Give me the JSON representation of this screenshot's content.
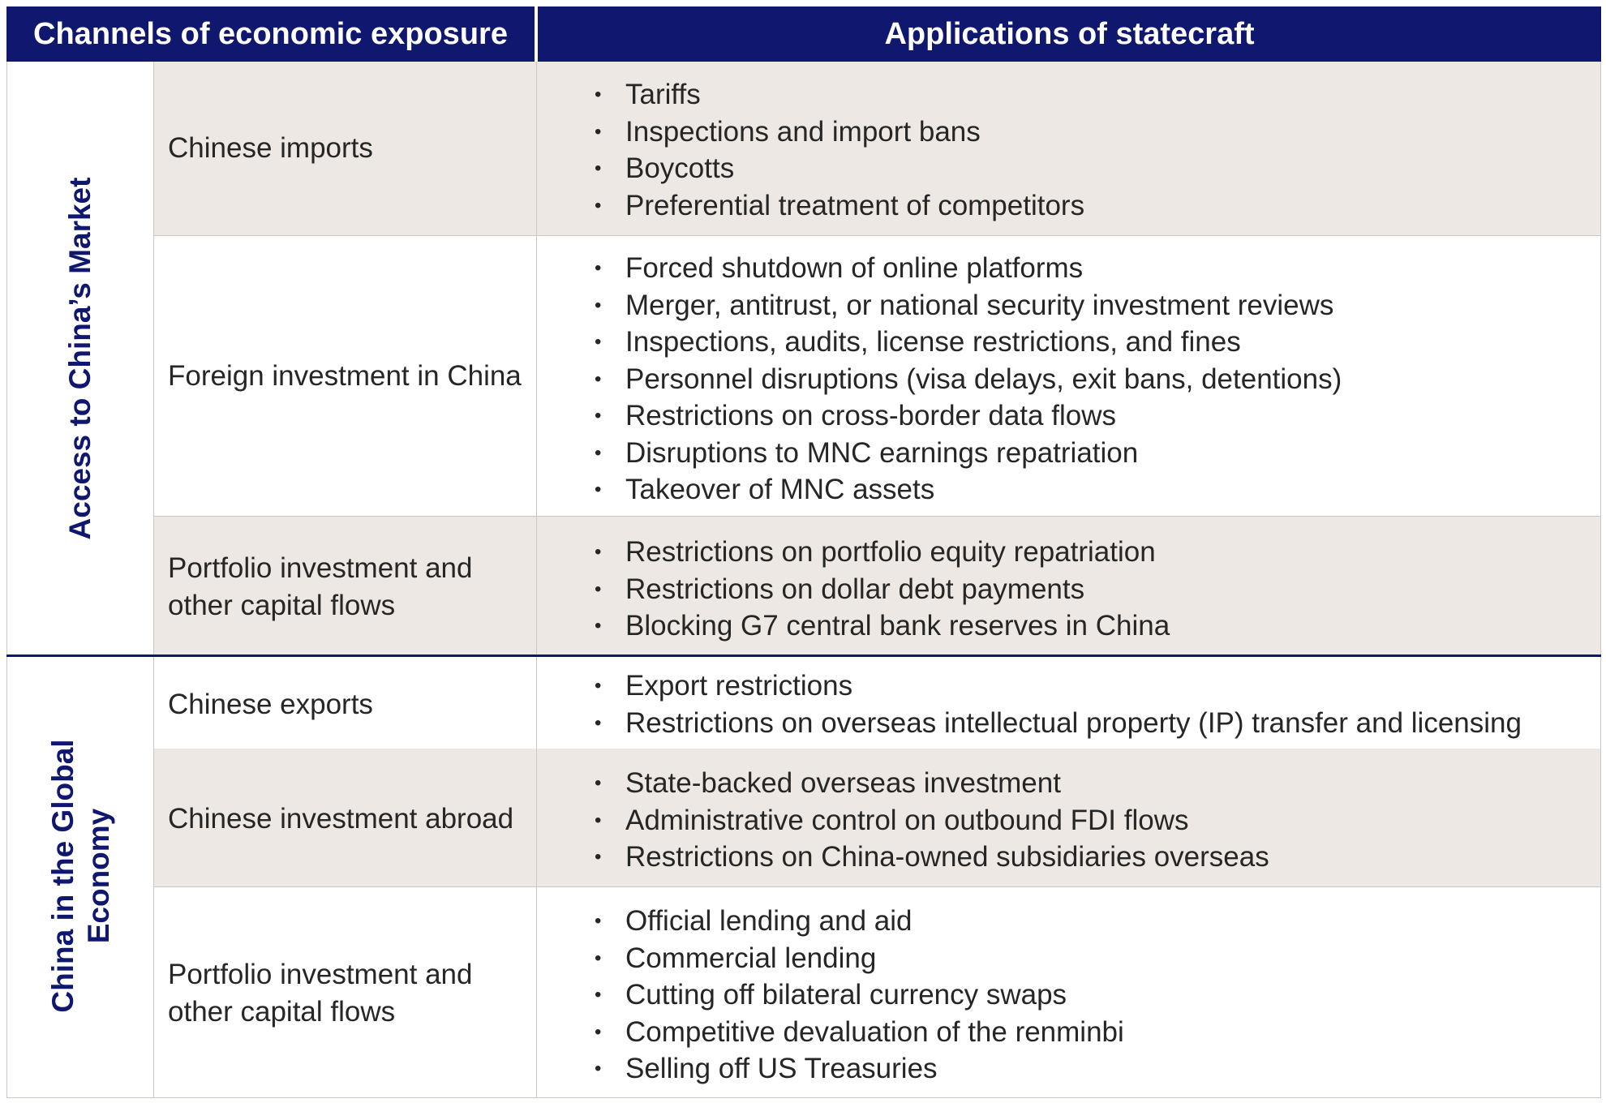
{
  "header": {
    "channels": "Channels of economic exposure",
    "applications": "Applications of statecraft"
  },
  "groups": [
    {
      "label": "Access to China’s Market",
      "rows": [
        {
          "channel": "Chinese imports",
          "applications": [
            "Tariffs",
            "Inspections and import bans",
            "Boycotts",
            "Preferential treatment of competitors"
          ]
        },
        {
          "channel": "Foreign investment in China",
          "applications": [
            "Forced shutdown of online platforms",
            "Merger, antitrust, or national security investment reviews",
            "Inspections, audits, license restrictions, and fines",
            "Personnel disruptions (visa delays, exit bans, detentions)",
            "Restrictions on cross-border data flows",
            "Disruptions to MNC earnings repatriation",
            "Takeover of MNC assets"
          ]
        },
        {
          "channel": "Portfolio investment and other capital flows",
          "applications": [
            "Restrictions on portfolio equity repatriation",
            "Restrictions on dollar debt payments",
            "Blocking G7 central bank reserves in China"
          ]
        }
      ]
    },
    {
      "label_line1": "China in the Global",
      "label_line2": "Economy",
      "rows": [
        {
          "channel": "Chinese exports",
          "applications": [
            "Export restrictions",
            "Restrictions on overseas intellectual property (IP) transfer and licensing"
          ]
        },
        {
          "channel": "Chinese investment abroad",
          "applications": [
            "State-backed overseas investment",
            "Administrative control on outbound FDI flows",
            "Restrictions on China-owned subsidiaries overseas"
          ]
        },
        {
          "channel": "Portfolio investment and other capital flows",
          "applications": [
            "Official lending and aid",
            "Commercial lending",
            "Cutting off bilateral currency swaps",
            "Competitive devaluation of the renminbi",
            "Selling off US Treasuries"
          ]
        }
      ]
    }
  ]
}
